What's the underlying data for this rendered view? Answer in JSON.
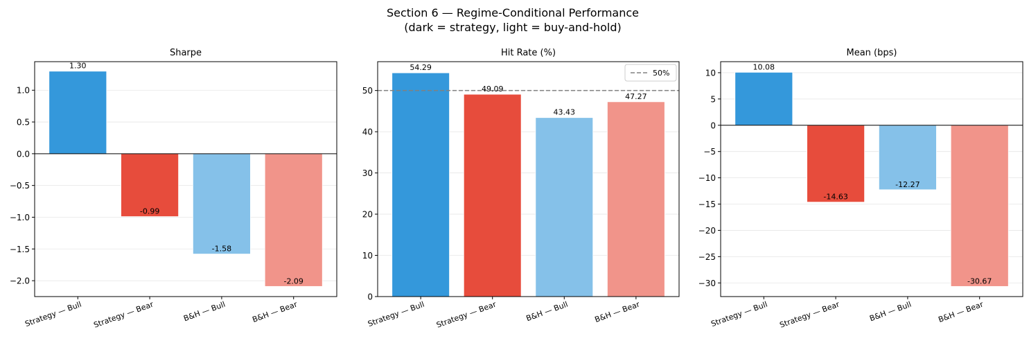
{
  "figure": {
    "title_line1": "Section 6 — Regime-Conditional Performance",
    "title_line2": "(dark = strategy, light = buy-and-hold)"
  },
  "colors": {
    "strategy_bull": "#3498db",
    "strategy_bear": "#e74c3c",
    "bh_bull": "#85c1e9",
    "bh_bear": "#f1948a",
    "grid": "#e6e6e6",
    "reference_line": "#808080"
  },
  "chart_data": [
    {
      "type": "bar",
      "title": "Sharpe",
      "categories": [
        "Strategy — Bull",
        "Strategy — Bear",
        "B&H — Bull",
        "B&H — Bear"
      ],
      "values": [
        1.3,
        -0.99,
        -1.58,
        -2.09
      ],
      "value_labels": [
        "1.30",
        "-0.99",
        "-1.58",
        "-2.09"
      ],
      "ylim": [
        -2.25,
        1.45
      ],
      "yticks": [
        -2.0,
        -1.5,
        -1.0,
        -0.5,
        0.0,
        0.5,
        1.0
      ],
      "ytick_labels": [
        "−2.0",
        "−1.5",
        "−1.0",
        "−0.5",
        "0.0",
        "0.5",
        "1.0"
      ],
      "zero_line": true,
      "grid": "y"
    },
    {
      "type": "bar",
      "title": "Hit Rate (%)",
      "categories": [
        "Strategy — Bull",
        "Strategy — Bear",
        "B&H — Bull",
        "B&H — Bear"
      ],
      "values": [
        54.29,
        49.09,
        43.43,
        47.27
      ],
      "value_labels": [
        "54.29",
        "49.09",
        "43.43",
        "47.27"
      ],
      "ylim": [
        0,
        57
      ],
      "yticks": [
        0,
        10,
        20,
        30,
        40,
        50
      ],
      "ytick_labels": [
        "0",
        "10",
        "20",
        "30",
        "40",
        "50"
      ],
      "reference_line": {
        "y": 50,
        "label": "50%"
      },
      "legend": "top-right",
      "grid": "y"
    },
    {
      "type": "bar",
      "title": "Mean (bps)",
      "categories": [
        "Strategy — Bull",
        "Strategy — Bear",
        "B&H — Bull",
        "B&H — Bear"
      ],
      "values": [
        10.08,
        -14.63,
        -12.27,
        -30.67
      ],
      "value_labels": [
        "10.08",
        "-14.63",
        "-12.27",
        "-30.67"
      ],
      "ylim": [
        -32.6,
        12.1
      ],
      "yticks": [
        -30,
        -25,
        -20,
        -15,
        -10,
        -5,
        0,
        5,
        10
      ],
      "ytick_labels": [
        "−30",
        "−25",
        "−20",
        "−15",
        "−10",
        "−5",
        "0",
        "5",
        "10"
      ],
      "zero_line": true,
      "grid": "y"
    }
  ]
}
